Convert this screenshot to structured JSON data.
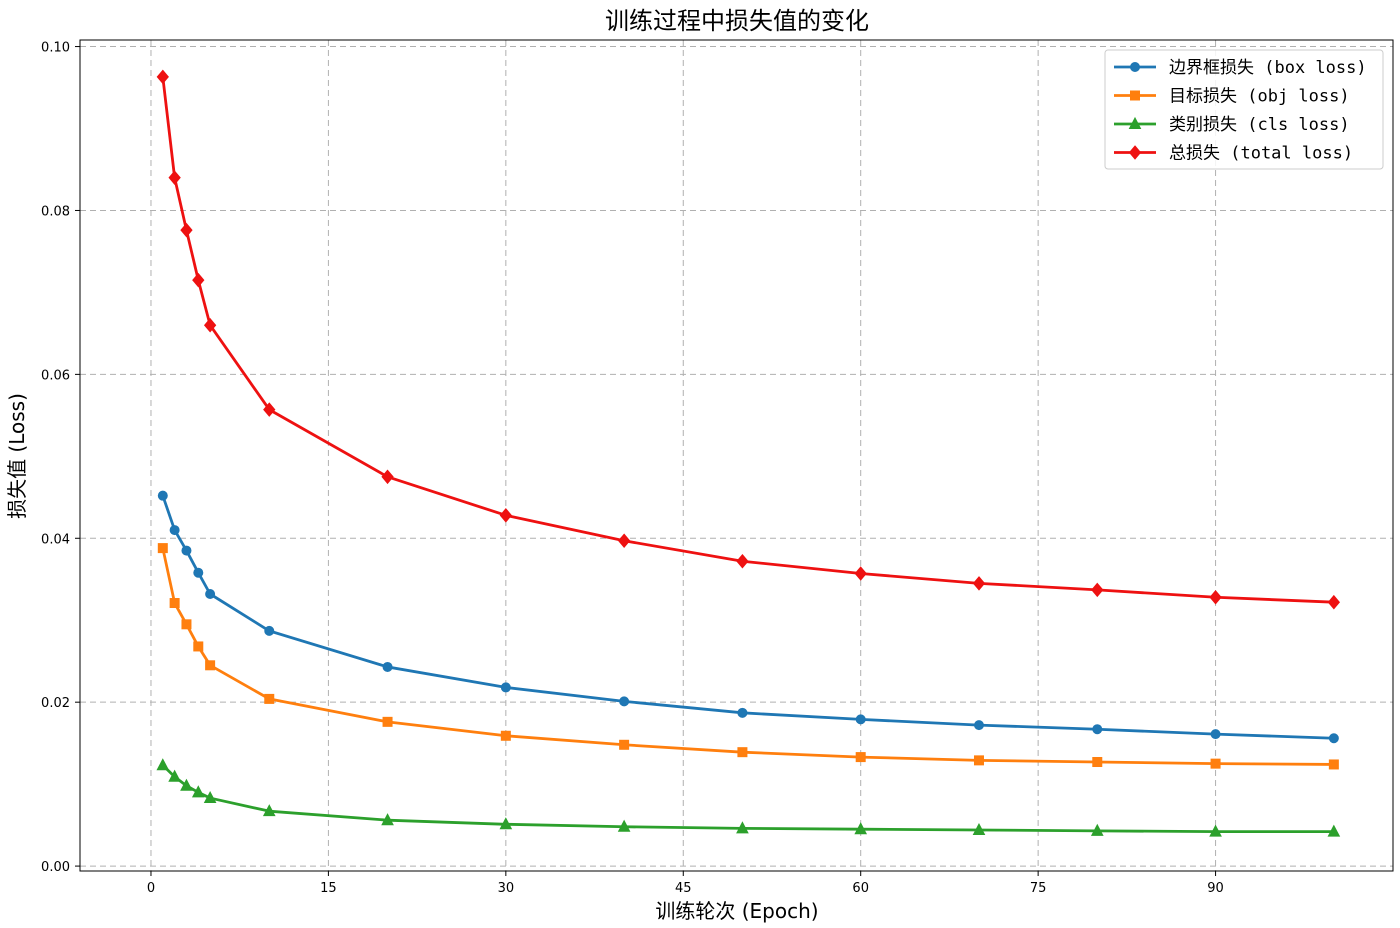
{
  "chart_data": {
    "type": "line",
    "title": "训练过程中损失值的变化",
    "xlabel": "训练轮次 (Epoch)",
    "ylabel": "损失值 (Loss)",
    "xlim": [
      -6,
      105
    ],
    "ylim": [
      -0.0006,
      0.1008
    ],
    "xticks": [
      0,
      15,
      30,
      45,
      60,
      75,
      90
    ],
    "xtick_labels": [
      "0",
      "15",
      "30",
      "45",
      "60",
      "75",
      "90"
    ],
    "yticks": [
      0.0,
      0.02,
      0.04,
      0.06,
      0.08,
      0.1
    ],
    "ytick_labels": [
      "0.00",
      "0.02",
      "0.04",
      "0.06",
      "0.08",
      "0.10"
    ],
    "grid": true,
    "legend_position": "top-right",
    "x": [
      1,
      2,
      3,
      4,
      5,
      10,
      20,
      30,
      40,
      50,
      60,
      70,
      80,
      90,
      100
    ],
    "series": [
      {
        "name": "边界框损失 (box loss)",
        "color": "#1f77b4",
        "marker": "circle",
        "values": [
          0.0452,
          0.041,
          0.0385,
          0.0358,
          0.0332,
          0.0287,
          0.0243,
          0.0218,
          0.0201,
          0.0187,
          0.0179,
          0.0172,
          0.0167,
          0.0161,
          0.0156
        ]
      },
      {
        "name": "目标损失 (obj loss)",
        "color": "#ff7f0e",
        "marker": "square",
        "values": [
          0.0388,
          0.0321,
          0.0295,
          0.0268,
          0.0245,
          0.0204,
          0.0176,
          0.0159,
          0.0148,
          0.0139,
          0.0133,
          0.0129,
          0.0127,
          0.0125,
          0.0124
        ]
      },
      {
        "name": "类别损失 (cls loss)",
        "color": "#2ca02c",
        "marker": "triangle",
        "values": [
          0.0123,
          0.0109,
          0.0098,
          0.009,
          0.0083,
          0.0067,
          0.0056,
          0.0051,
          0.0048,
          0.0046,
          0.0045,
          0.0044,
          0.0043,
          0.0042,
          0.0042
        ]
      },
      {
        "name": "总损失 (total loss)",
        "color": "#ee1111",
        "marker": "diamond",
        "values": [
          0.0963,
          0.084,
          0.0776,
          0.0715,
          0.066,
          0.0557,
          0.0475,
          0.0428,
          0.0397,
          0.0372,
          0.0357,
          0.0345,
          0.0337,
          0.0328,
          0.0322
        ]
      }
    ]
  }
}
